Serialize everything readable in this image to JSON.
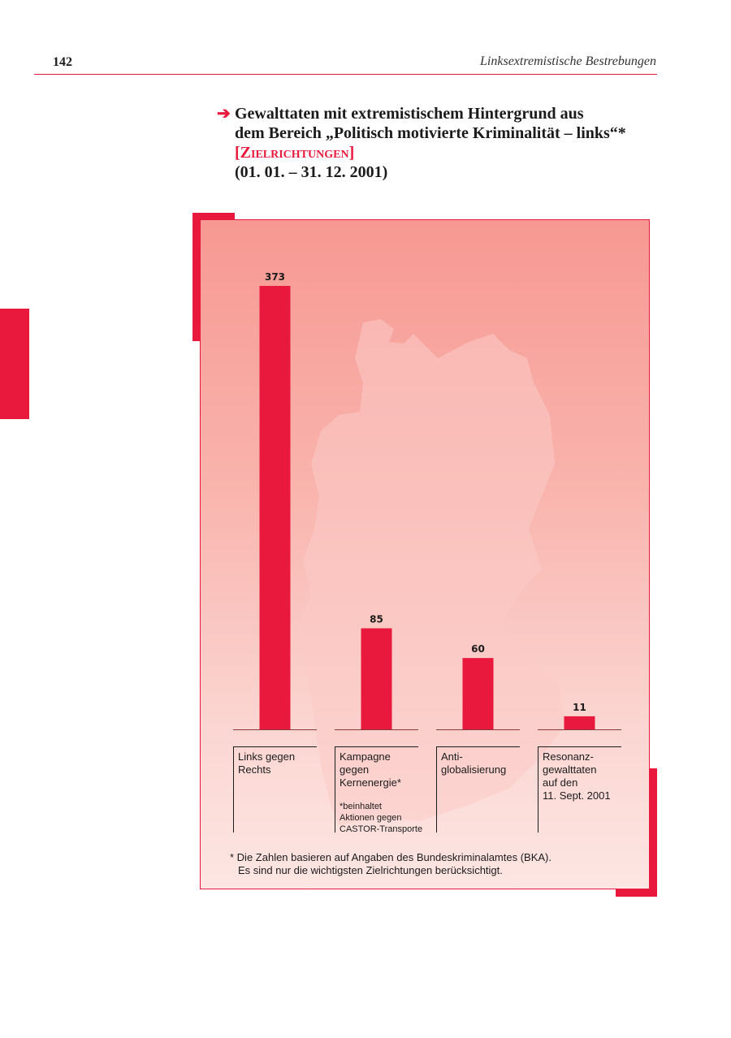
{
  "page": {
    "number": "142",
    "running_head": "Linksextremistische Bestrebungen"
  },
  "figure": {
    "arrow": "➔",
    "title_lines": [
      "Gewalttaten mit extremistischem Hintergrund aus",
      "dem Bereich „Politisch motivierte Kriminalität – links“*"
    ],
    "subtitle": "[Zielrichtungen]",
    "period": "(01. 01. – 31. 12. 2001)"
  },
  "chart_data": {
    "type": "bar",
    "categories": [
      "Links gegen Rechts",
      "Kampagne gegen Kernenergie*",
      "Anti-globalisierung",
      "Resonanz-gewalttaten auf den 11. Sept. 2001"
    ],
    "category_lines": [
      [
        "Links gegen",
        "Rechts"
      ],
      [
        "Kampagne",
        "gegen",
        "Kernenergie*"
      ],
      [
        "Anti-",
        "globalisierung"
      ],
      [
        "Resonanz-",
        "gewalttaten",
        "auf den",
        "11. Sept. 2001"
      ]
    ],
    "values": [
      373,
      85,
      60,
      11
    ],
    "category_note": [
      "*beinhaltet",
      "Aktionen gegen",
      "CASTOR-Transporte"
    ],
    "ylim": [
      0,
      373
    ],
    "grid": false,
    "bar_color": "#e8193c"
  },
  "footnote": [
    "* Die Zahlen basieren auf Angaben des Bundeskriminalamtes (BKA).",
    "Es sind nur die wichtigsten Zielrichtungen berücksichtigt."
  ],
  "colors": {
    "accent": "#e8193c",
    "panel_top": "#f79892",
    "panel_bottom": "#fde6e3",
    "map_fill": "#fccbc6"
  }
}
